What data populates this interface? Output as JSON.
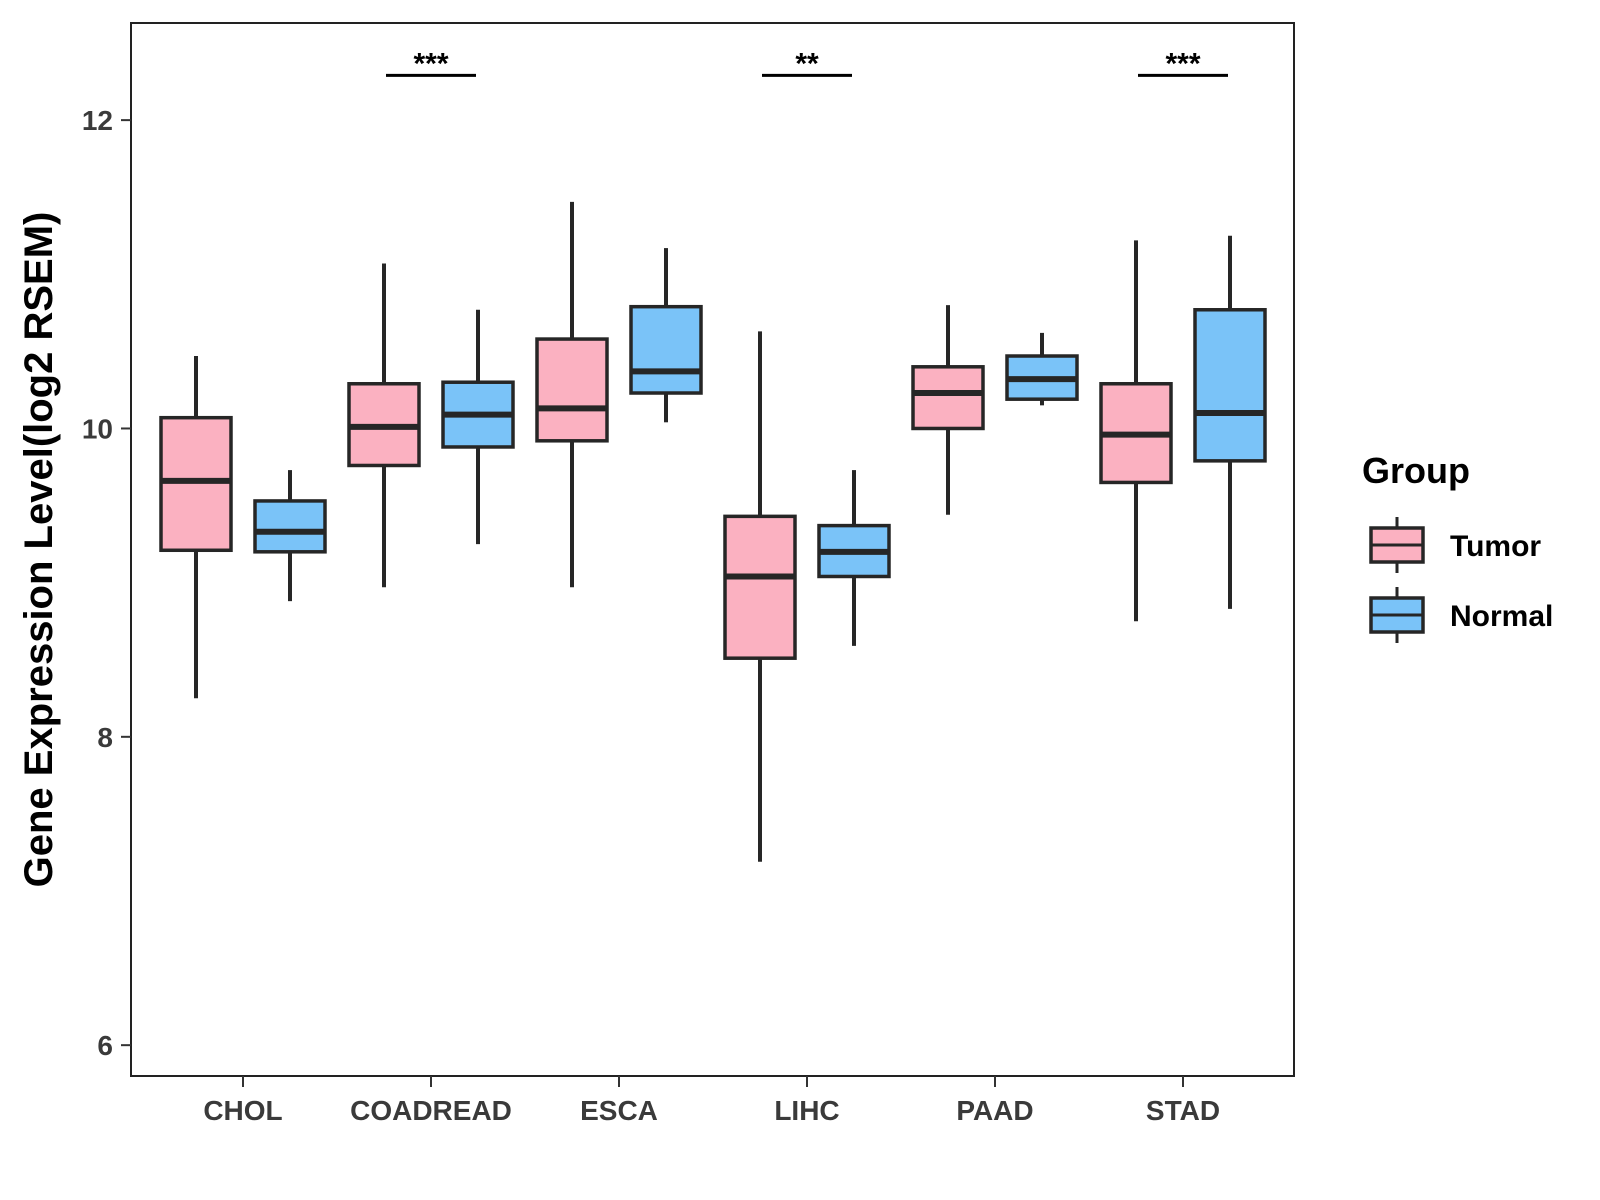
{
  "chart_data": {
    "type": "boxplot",
    "title": "",
    "xlabel": "",
    "ylabel": "Gene Expression Level(log2 RSEM)",
    "ylim": [
      5.8,
      12.63
    ],
    "yticks": [
      6,
      8,
      10,
      12
    ],
    "categories": [
      "CHOL",
      "COADREAD",
      "ESCA",
      "LIHC",
      "PAAD",
      "STAD"
    ],
    "legend": {
      "title": "Group",
      "position": "right"
    },
    "series": [
      {
        "name": "Tumor",
        "color": "#FBB1C1",
        "boxes": [
          {
            "min": 8.25,
            "q1": 9.21,
            "median": 9.66,
            "q3": 10.07,
            "max": 10.47
          },
          {
            "min": 8.97,
            "q1": 9.76,
            "median": 10.01,
            "q3": 10.29,
            "max": 11.07
          },
          {
            "min": 8.97,
            "q1": 9.92,
            "median": 10.13,
            "q3": 10.58,
            "max": 11.47
          },
          {
            "min": 7.19,
            "q1": 8.51,
            "median": 9.04,
            "q3": 9.43,
            "max": 10.63
          },
          {
            "min": 9.44,
            "q1": 10.0,
            "median": 10.23,
            "q3": 10.4,
            "max": 10.8
          },
          {
            "min": 8.75,
            "q1": 9.65,
            "median": 9.96,
            "q3": 10.29,
            "max": 11.22
          }
        ]
      },
      {
        "name": "Normal",
        "color": "#7AC3F8",
        "boxes": [
          {
            "min": 8.88,
            "q1": 9.2,
            "median": 9.33,
            "q3": 9.53,
            "max": 9.73
          },
          {
            "min": 9.25,
            "q1": 9.88,
            "median": 10.09,
            "q3": 10.3,
            "max": 10.77
          },
          {
            "min": 10.04,
            "q1": 10.23,
            "median": 10.37,
            "q3": 10.79,
            "max": 11.17
          },
          {
            "min": 8.59,
            "q1": 9.04,
            "median": 9.2,
            "q3": 9.37,
            "max": 9.73
          },
          {
            "min": 10.15,
            "q1": 10.19,
            "median": 10.32,
            "q3": 10.47,
            "max": 10.62
          },
          {
            "min": 8.83,
            "q1": 9.79,
            "median": 10.1,
            "q3": 10.77,
            "max": 11.25
          }
        ]
      }
    ],
    "significance": [
      {
        "category": "COADREAD",
        "label": "***",
        "y": 12.29
      },
      {
        "category": "LIHC",
        "label": "**",
        "y": 12.29
      },
      {
        "category": "STAD",
        "label": "***",
        "y": 12.29
      }
    ],
    "grid": false
  }
}
